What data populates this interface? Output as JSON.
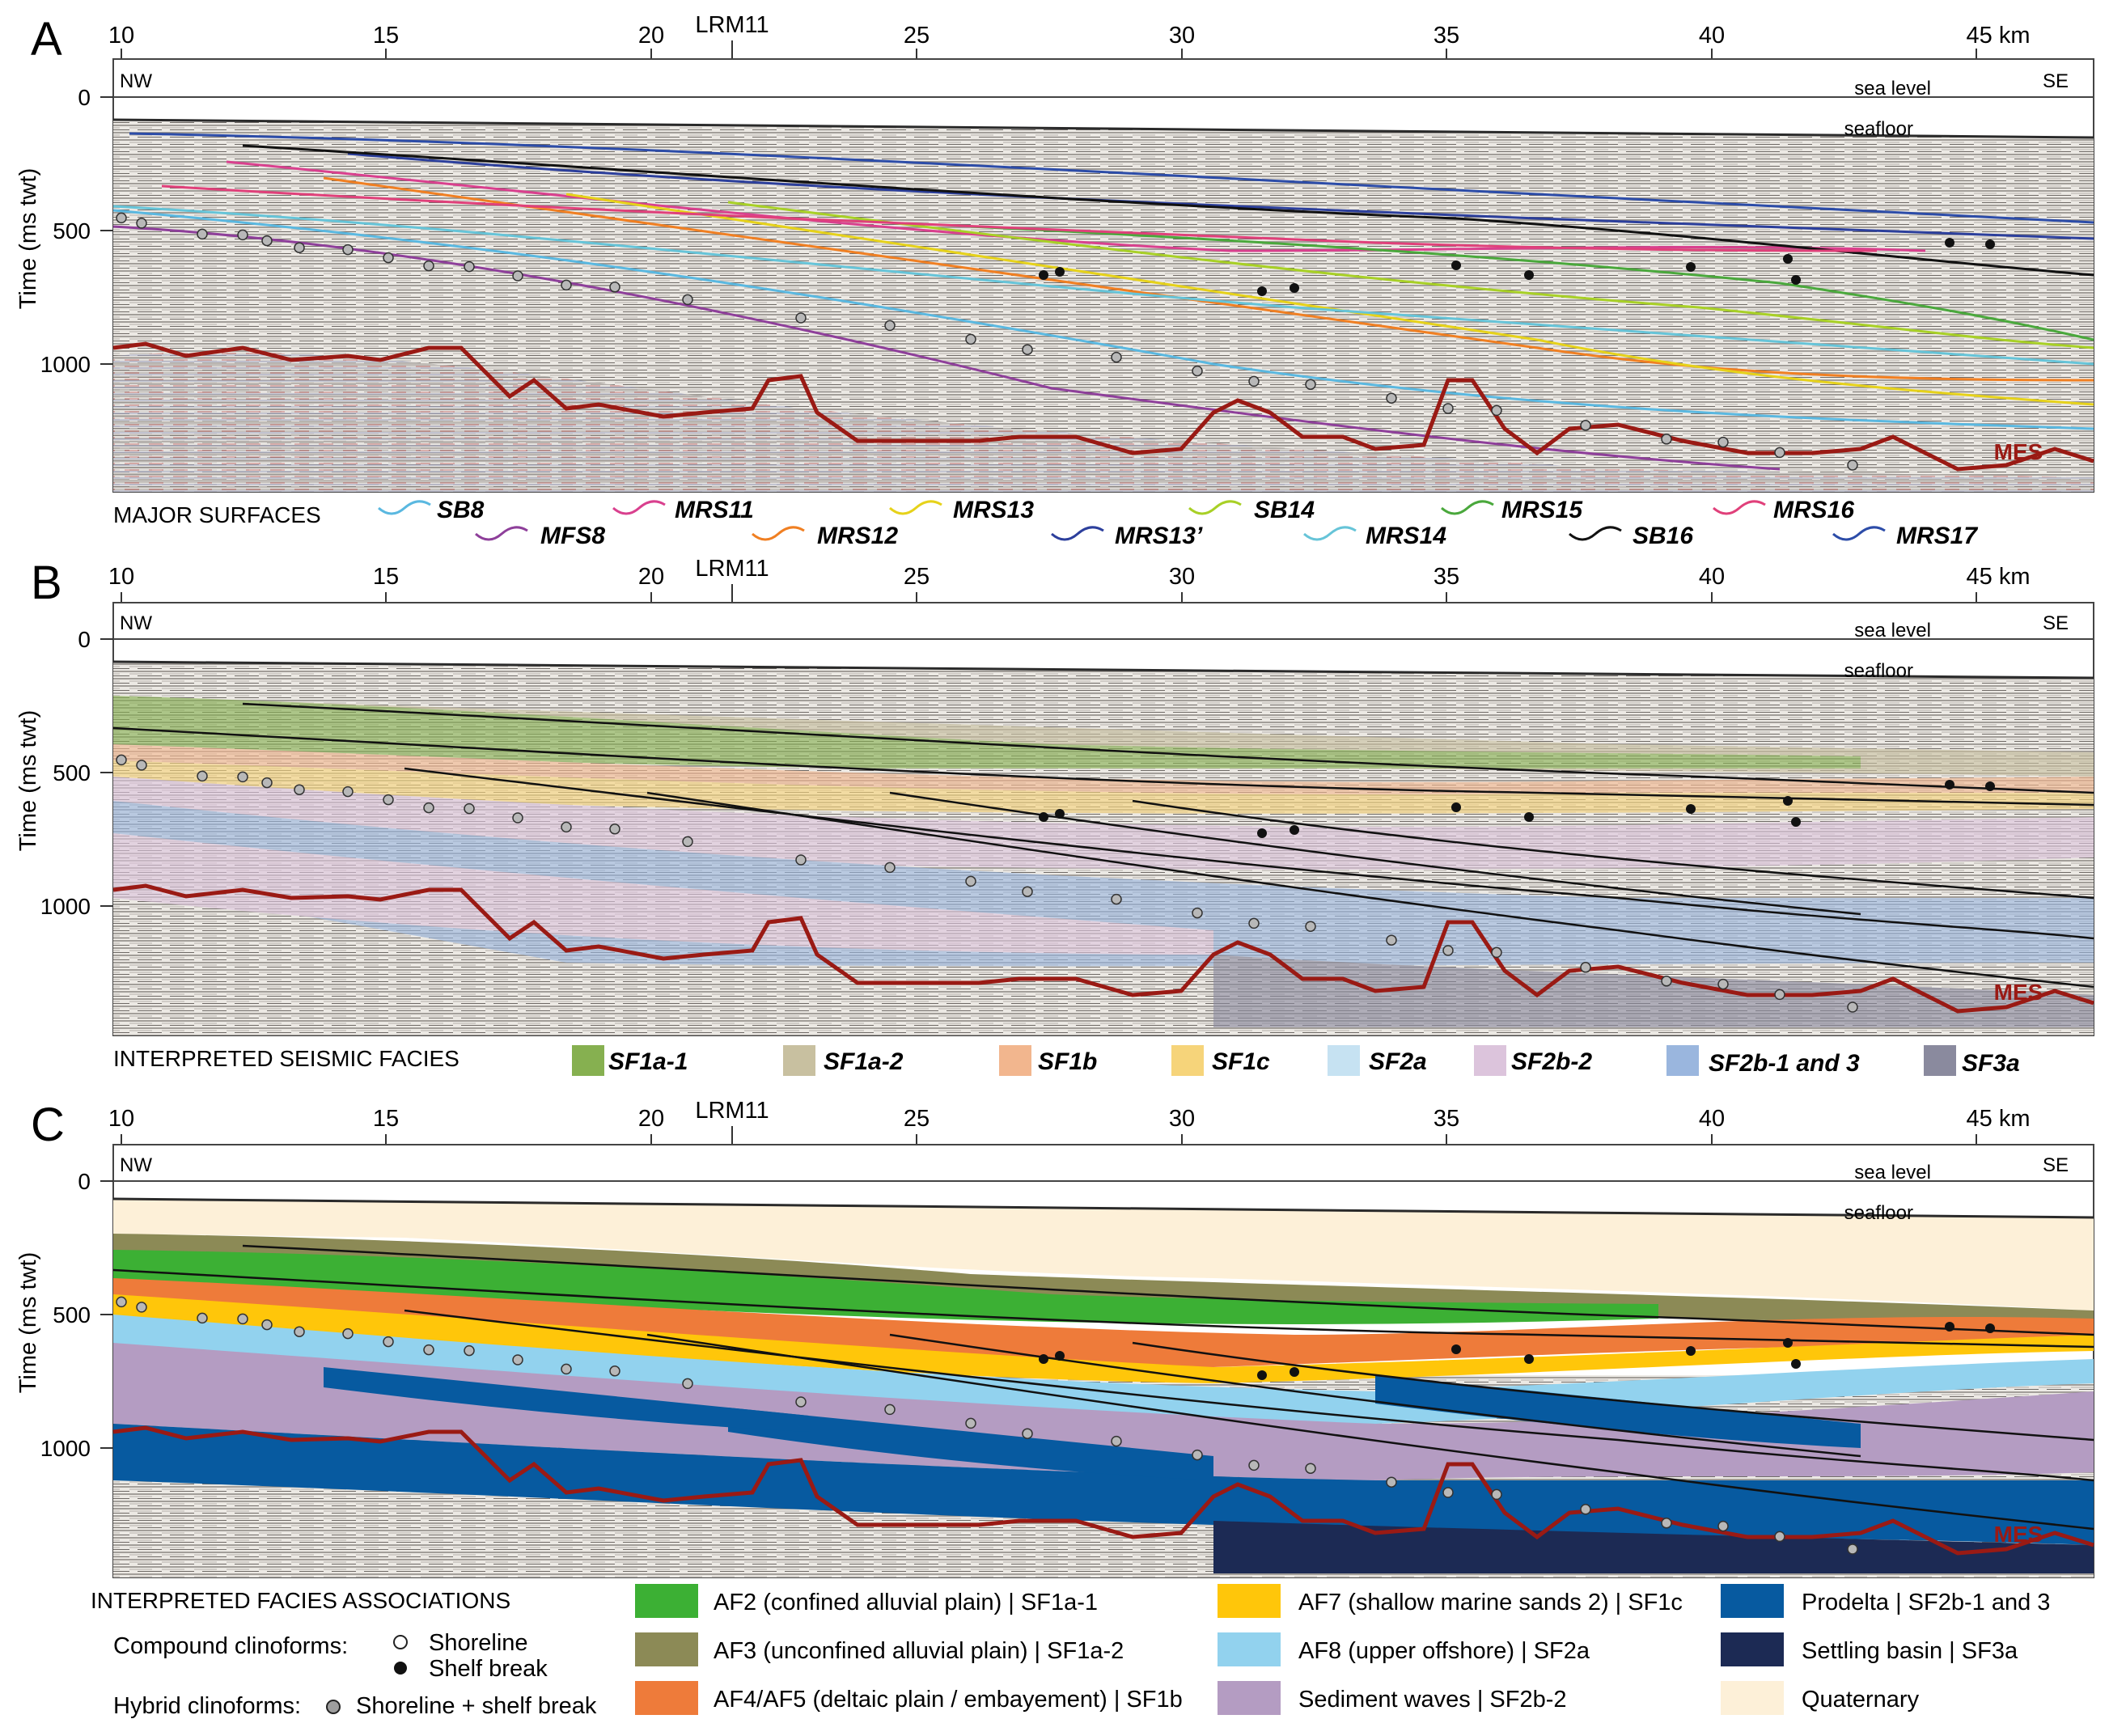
{
  "panels": [
    {
      "letter": "A",
      "km_ticks": [
        "10",
        "15",
        "20",
        "25",
        "30",
        "35",
        "40",
        "45 km"
      ],
      "well": "LRM11",
      "time_ticks": [
        "0",
        "500",
        "1000"
      ],
      "axis_title": "Time (ms twt)",
      "nw": "NW",
      "se": "SE",
      "sea_level": "sea level",
      "seafloor": "seafloor",
      "mes": "MES"
    },
    {
      "letter": "B",
      "km_ticks": [
        "10",
        "15",
        "20",
        "25",
        "30",
        "35",
        "40",
        "45 km"
      ],
      "well": "LRM11",
      "time_ticks": [
        "0",
        "500",
        "1000"
      ],
      "axis_title": "Time (ms twt)",
      "nw": "NW",
      "se": "SE",
      "sea_level": "sea level",
      "seafloor": "seafloor",
      "mes": "MES"
    },
    {
      "letter": "C",
      "km_ticks": [
        "10",
        "15",
        "20",
        "25",
        "30",
        "35",
        "40",
        "45 km"
      ],
      "well": "LRM11",
      "time_ticks": [
        "0",
        "500",
        "1000"
      ],
      "axis_title": "Time (ms twt)",
      "nw": "NW",
      "se": "SE",
      "sea_level": "sea level",
      "seafloor": "seafloor",
      "mes": "MES"
    }
  ],
  "surfaces_legend": {
    "title": "MAJOR SURFACES",
    "items": [
      {
        "label": "SB8",
        "color": "#5ab8e0"
      },
      {
        "label": "MFS8",
        "color": "#8e3f9a"
      },
      {
        "label": "MRS11",
        "color": "#d9408e"
      },
      {
        "label": "MRS12",
        "color": "#f07f22"
      },
      {
        "label": "MRS13",
        "color": "#e6d21a"
      },
      {
        "label": "MRS13’",
        "color": "#2c3f9c"
      },
      {
        "label": "SB14",
        "color": "#a8d026"
      },
      {
        "label": "MRS14",
        "color": "#66c4d8"
      },
      {
        "label": "MRS15",
        "color": "#4aa83c"
      },
      {
        "label": "SB16",
        "color": "#111111"
      },
      {
        "label": "MRS16",
        "color": "#e0407a"
      },
      {
        "label": "MRS17",
        "color": "#2c4ca8"
      }
    ]
  },
  "seismic_facies_legend": {
    "title": "INTERPRETED SEISMIC FACIES",
    "items": [
      {
        "label": "SF1a-1",
        "color": "#86b050"
      },
      {
        "label": "SF1a-2",
        "color": "#c8c0a0"
      },
      {
        "label": "SF1b",
        "color": "#f2b68e"
      },
      {
        "label": "SF1c",
        "color": "#f6d47a"
      },
      {
        "label": "SF2a",
        "color": "#c6e2f2"
      },
      {
        "label": "SF2b-2",
        "color": "#dcc4dc"
      },
      {
        "label": "SF2b-1 and 3",
        "color": "#9ab6de"
      },
      {
        "label": "SF3a",
        "color": "#8a8a9e"
      }
    ]
  },
  "facies_assoc_legend": {
    "title": "INTERPRETED FACIES ASSOCIATIONS",
    "compound_label": "Compound clinoforms:",
    "shoreline": "Shoreline",
    "shelf_break": "Shelf break",
    "hybrid_label": "Hybrid clinoforms:",
    "hybrid_item": "Shoreline + shelf break",
    "items": [
      {
        "label": "AF2 (confined alluvial plain) | SF1a-1",
        "color": "#3cb034"
      },
      {
        "label": "AF3 (unconfined alluvial plain) | SF1a-2",
        "color": "#8c8a56"
      },
      {
        "label": "AF4/AF5 (deltaic plain / embayement) | SF1b",
        "color": "#ee7b3a"
      },
      {
        "label": "AF7 (shallow marine sands 2) | SF1c",
        "color": "#ffc60a"
      },
      {
        "label": "AF8 (upper offshore) | SF2a",
        "color": "#92d2ee"
      },
      {
        "label": "Sediment waves | SF2b-2",
        "color": "#b49cc2"
      },
      {
        "label": "Prodelta | SF2b-1 and 3",
        "color": "#075aa0"
      },
      {
        "label": "Settling basin | SF3a",
        "color": "#1c2a54"
      },
      {
        "label": "Quaternary",
        "color": "#fdf0d8"
      }
    ]
  },
  "colors": {
    "seismic_bg": "#e9e6e1",
    "mes_line": "#9a1a14",
    "seafloor_line": "#2a2a2a"
  }
}
